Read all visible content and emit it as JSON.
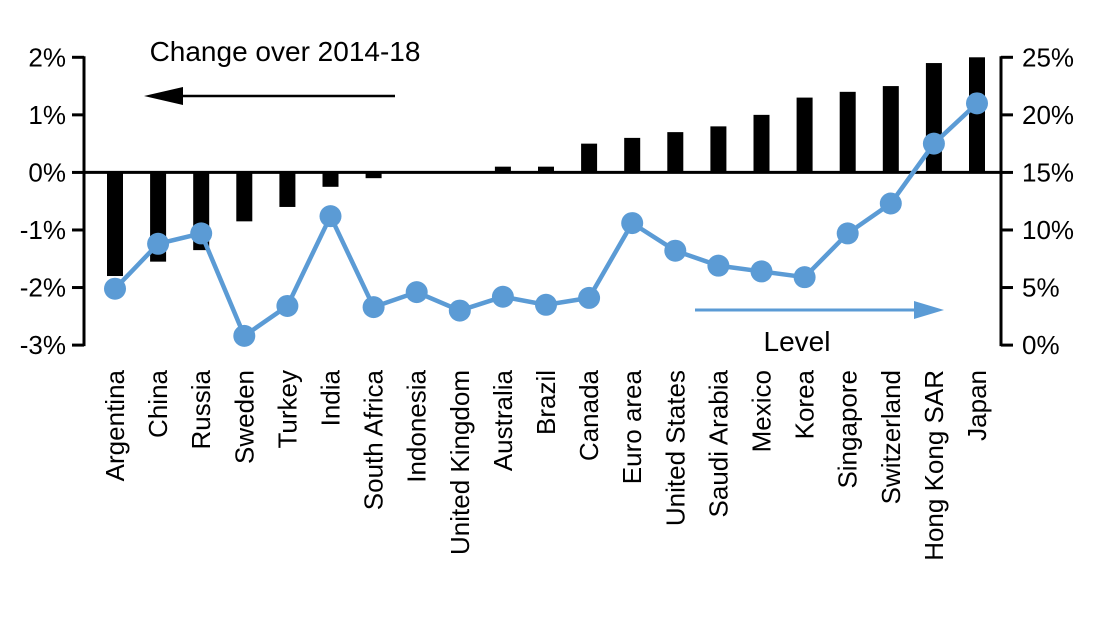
{
  "chart_data": {
    "type": "bar",
    "subtype": "bar-line-combo",
    "title": "",
    "categories": [
      "Argentina",
      "China",
      "Russia",
      "Sweden",
      "Turkey",
      "India",
      "South Africa",
      "Indonesia",
      "United Kingdom",
      "Australia",
      "Brazil",
      "Canada",
      "Euro area",
      "United States",
      "Saudi Arabia",
      "Mexico",
      "Korea",
      "Singapore",
      "Switzerland",
      "Hong Kong SAR",
      "Japan"
    ],
    "series": [
      {
        "name": "Change over 2014-18",
        "type": "bar",
        "axis": "left",
        "color": "#000000",
        "values": [
          -1.8,
          -1.55,
          -1.35,
          -0.85,
          -0.6,
          -0.25,
          -0.1,
          0,
          0,
          0.1,
          0.1,
          0.5,
          0.6,
          0.7,
          0.8,
          1.0,
          1.3,
          1.4,
          1.5,
          1.9,
          2.0
        ]
      },
      {
        "name": "Level",
        "type": "line",
        "axis": "right",
        "color": "#5B9BD5",
        "values": [
          4.9,
          8.8,
          9.7,
          0.8,
          3.4,
          11.2,
          3.3,
          4.6,
          3.0,
          4.2,
          3.5,
          4.1,
          10.6,
          8.2,
          6.9,
          6.4,
          5.9,
          9.7,
          12.3,
          17.5,
          21.0
        ]
      }
    ],
    "left_axis": {
      "min": -3,
      "max": 2,
      "tick_labels": [
        "2%",
        "1%",
        "0%",
        "-1%",
        "-2%",
        "-3%"
      ],
      "tick_values": [
        2,
        1,
        0,
        -1,
        -2,
        -3
      ]
    },
    "right_axis": {
      "min": 0,
      "max": 25,
      "tick_labels": [
        "25%",
        "20%",
        "15%",
        "10%",
        "5%",
        "0%"
      ],
      "tick_values": [
        25,
        20,
        15,
        10,
        5,
        0
      ]
    },
    "annotations": [
      {
        "text": "Change over 2014-18",
        "arrow_direction": "left",
        "color": "#000000"
      },
      {
        "text": "Level",
        "arrow_direction": "right",
        "color": "#5B9BD5"
      }
    ],
    "grid": false,
    "legend_position": "none",
    "xlabel": "",
    "ylabel": ""
  },
  "colors": {
    "bar": "#000000",
    "line": "#5B9BD5",
    "axis": "#000000",
    "background": "#ffffff"
  }
}
